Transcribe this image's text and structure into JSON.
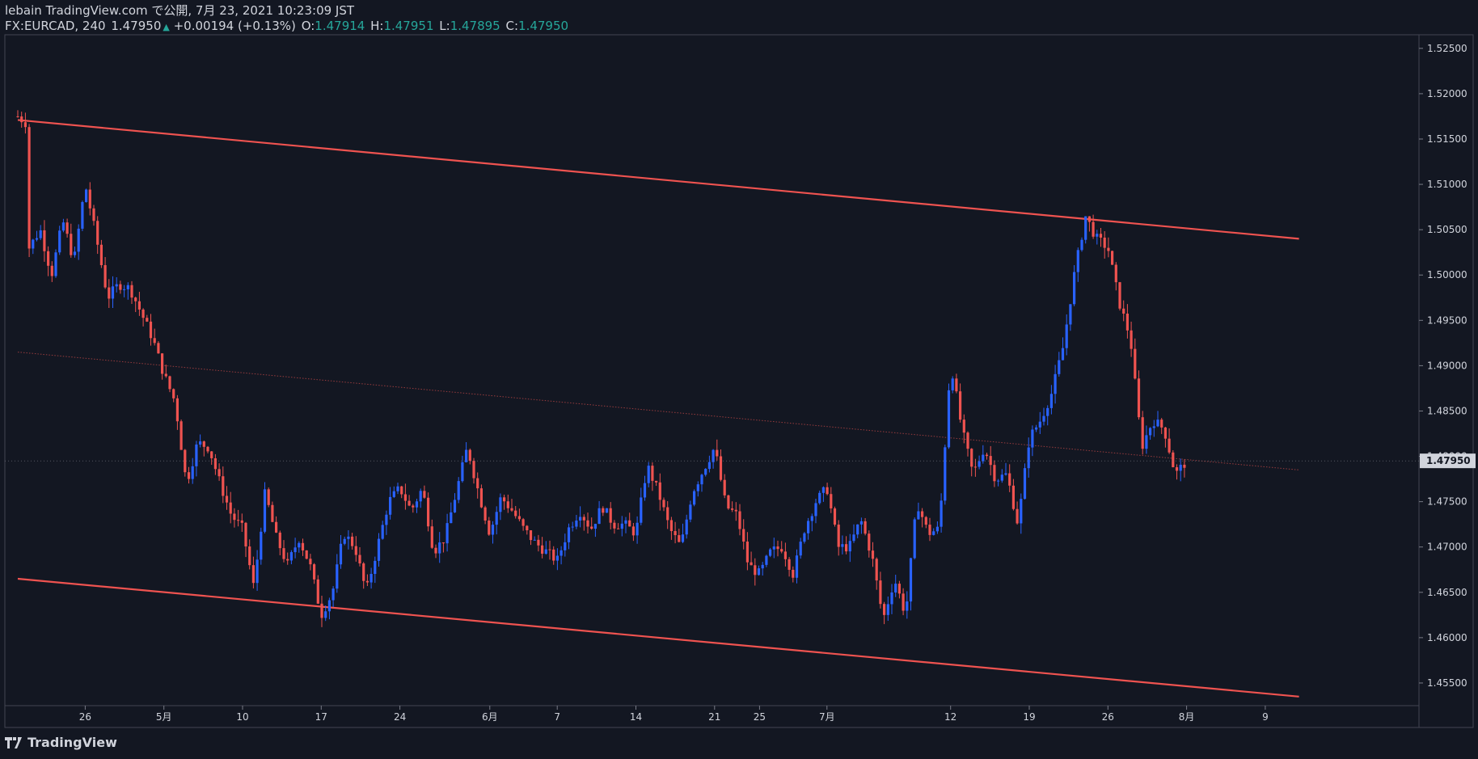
{
  "header": {
    "line1": "lebain TradingView.com で公開, 7月 23, 2021 10:23:09 JST",
    "symbol": "FX:EURCAD, 240",
    "last": "1.47950",
    "change_arrow": "▲",
    "change": "+0.00194 (+0.13%)",
    "o_label": "O:",
    "o": "1.47914",
    "h_label": "H:",
    "h": "1.47951",
    "l_label": "L:",
    "l": "1.47895",
    "c_label": "C:",
    "c": "1.47950"
  },
  "footer": {
    "brand": "TradingView",
    "logo_icon": "tradingview-logo-icon"
  },
  "colors": {
    "background": "#131722",
    "up_candle": "#2962ff",
    "down_candle": "#ef5350",
    "channel_line": "#ef5350",
    "axis_text": "#d1d4dc",
    "price_label_bg": "#d1d4dc",
    "price_label_text": "#131722"
  },
  "chart_data": {
    "type": "candlestick",
    "symbol": "FX:EURCAD",
    "interval": "240",
    "y_ticks": [
      "1.52500",
      "1.52000",
      "1.51500",
      "1.51000",
      "1.50500",
      "1.50000",
      "1.49500",
      "1.49000",
      "1.48500",
      "1.48000",
      "1.47500",
      "1.47000",
      "1.46500",
      "1.46000",
      "1.45500"
    ],
    "ylim": [
      1.4525,
      1.5265
    ],
    "x_ticks": [
      "26",
      "5月",
      "10",
      "17",
      "24",
      "6月",
      "7",
      "14",
      "21",
      "25",
      "7月",
      "12",
      "19",
      "26",
      "8月",
      "9"
    ],
    "x_tick_dates": [
      "2021-04-26",
      "2021-05-03",
      "2021-05-10",
      "2021-05-17",
      "2021-05-24",
      "2021-06-01",
      "2021-06-07",
      "2021-06-14",
      "2021-06-21",
      "2021-06-25",
      "2021-07-01",
      "2021-07-12",
      "2021-07-19",
      "2021-07-26",
      "2021-08-02",
      "2021-08-09"
    ],
    "current_price": "1.47950",
    "lines": [
      {
        "name": "",
        "style": "solid",
        "from": [
          "2021-04-20",
          1.5171
        ],
        "to": [
          "2021-08-12",
          1.504
        ]
      },
      {
        "name": "",
        "style": "dotted",
        "from": [
          "2021-04-20",
          1.4915
        ],
        "to": [
          "2021-08-12",
          1.4785
        ]
      },
      {
        "name": "",
        "style": "solid",
        "from": [
          "2021-04-20",
          1.4665
        ],
        "to": [
          "2021-08-12",
          1.4535
        ]
      }
    ],
    "waypoints": [
      [
        "2021-04-20",
        1.5175
      ],
      [
        "2021-04-21",
        1.5165
      ],
      [
        "2021-04-21",
        1.503
      ],
      [
        "2021-04-22",
        1.505
      ],
      [
        "2021-04-23",
        1.5
      ],
      [
        "2021-04-24",
        1.506
      ],
      [
        "2021-04-25",
        1.5015
      ],
      [
        "2021-04-26",
        1.51
      ],
      [
        "2021-04-27",
        1.504
      ],
      [
        "2021-04-28",
        1.4975
      ],
      [
        "2021-04-29",
        1.499
      ],
      [
        "2021-04-30",
        1.4985
      ],
      [
        "2021-05-02",
        1.493
      ],
      [
        "2021-05-03",
        1.489
      ],
      [
        "2021-05-04",
        1.486
      ],
      [
        "2021-05-05",
        1.477
      ],
      [
        "2021-05-06",
        1.4815
      ],
      [
        "2021-05-07",
        1.481
      ],
      [
        "2021-05-08",
        1.477
      ],
      [
        "2021-05-09",
        1.4735
      ],
      [
        "2021-05-10",
        1.472
      ],
      [
        "2021-05-11",
        1.4655
      ],
      [
        "2021-05-12",
        1.476
      ],
      [
        "2021-05-13",
        1.471
      ],
      [
        "2021-05-14",
        1.468
      ],
      [
        "2021-05-15",
        1.471
      ],
      [
        "2021-05-16",
        1.468
      ],
      [
        "2021-05-17",
        1.4625
      ],
      [
        "2021-05-18",
        1.465
      ],
      [
        "2021-05-19",
        1.4715
      ],
      [
        "2021-05-20",
        1.47
      ],
      [
        "2021-05-21",
        1.465
      ],
      [
        "2021-05-23",
        1.475
      ],
      [
        "2021-05-24",
        1.4765
      ],
      [
        "2021-05-25",
        1.474
      ],
      [
        "2021-05-26",
        1.4765
      ],
      [
        "2021-05-27",
        1.4695
      ],
      [
        "2021-05-28",
        1.471
      ],
      [
        "2021-05-29",
        1.476
      ],
      [
        "2021-05-30",
        1.481
      ],
      [
        "2021-05-31",
        1.476
      ],
      [
        "2021-06-01",
        1.4715
      ],
      [
        "2021-06-02",
        1.4755
      ],
      [
        "2021-06-03",
        1.474
      ],
      [
        "2021-06-04",
        1.472
      ],
      [
        "2021-06-05",
        1.4705
      ],
      [
        "2021-06-07",
        1.4685
      ],
      [
        "2021-06-08",
        1.472
      ],
      [
        "2021-06-09",
        1.474
      ],
      [
        "2021-06-10",
        1.472
      ],
      [
        "2021-06-11",
        1.4745
      ],
      [
        "2021-06-12",
        1.4725
      ],
      [
        "2021-06-13",
        1.4725
      ],
      [
        "2021-06-14",
        1.4715
      ],
      [
        "2021-06-15",
        1.479
      ],
      [
        "2021-06-16",
        1.476
      ],
      [
        "2021-06-17",
        1.472
      ],
      [
        "2021-06-18",
        1.47
      ],
      [
        "2021-06-19",
        1.476
      ],
      [
        "2021-06-21",
        1.481
      ],
      [
        "2021-06-22",
        1.4745
      ],
      [
        "2021-06-23",
        1.4735
      ],
      [
        "2021-06-24",
        1.468
      ],
      [
        "2021-06-25",
        1.467
      ],
      [
        "2021-06-26",
        1.4695
      ],
      [
        "2021-06-27",
        1.47
      ],
      [
        "2021-06-28",
        1.467
      ],
      [
        "2021-06-29",
        1.472
      ],
      [
        "2021-06-30",
        1.475
      ],
      [
        "2021-07-01",
        1.4765
      ],
      [
        "2021-07-02",
        1.47
      ],
      [
        "2021-07-03",
        1.47
      ],
      [
        "2021-07-04",
        1.473
      ],
      [
        "2021-07-05",
        1.469
      ],
      [
        "2021-07-06",
        1.462
      ],
      [
        "2021-07-07",
        1.4665
      ],
      [
        "2021-07-08",
        1.4625
      ],
      [
        "2021-07-09",
        1.475
      ],
      [
        "2021-07-10",
        1.4715
      ],
      [
        "2021-07-11",
        1.472
      ],
      [
        "2021-07-12",
        1.4905
      ],
      [
        "2021-07-13",
        1.483
      ],
      [
        "2021-07-14",
        1.478
      ],
      [
        "2021-07-15",
        1.481
      ],
      [
        "2021-07-16",
        1.4775
      ],
      [
        "2021-07-17",
        1.478
      ],
      [
        "2021-07-18",
        1.4725
      ],
      [
        "2021-07-19",
        1.482
      ],
      [
        "2021-07-20",
        1.484
      ],
      [
        "2021-07-21",
        1.487
      ],
      [
        "2021-07-22",
        1.492
      ],
      [
        "2021-07-23",
        1.5
      ],
      [
        "2021-07-24",
        1.5065
      ],
      [
        "2021-07-25",
        1.504
      ],
      [
        "2021-07-26",
        1.503
      ],
      [
        "2021-07-27",
        1.497
      ],
      [
        "2021-07-28",
        1.493
      ],
      [
        "2021-07-29",
        1.481
      ],
      [
        "2021-07-30",
        1.484
      ],
      [
        "2021-07-31",
        1.483
      ],
      [
        "2021-08-01",
        1.478
      ],
      [
        "2021-08-02",
        1.4795
      ]
    ]
  }
}
